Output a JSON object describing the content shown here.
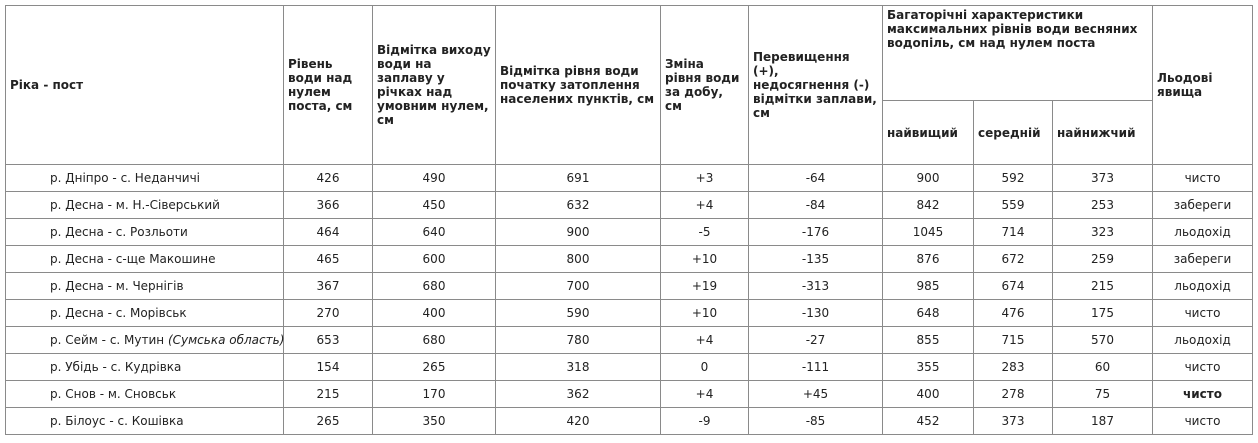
{
  "table": {
    "header": [
      "Ріка - пост",
      "Рівень води над нулем поста, см",
      "Відмітка виходу води на заплаву у річках над умовним нулем, см",
      "Відмітка рівня води початку затоплення населених пунктів, см",
      "Зміна рівня води за добу, см",
      "Перевищення (+), недосягнення (-) відмітки заплави, см",
      "Багаторічні характеристики максимальних рівнів води весняних водопіль, см над нулем поста",
      "Льодові явища"
    ],
    "subheader": [
      "найвищий",
      "середній",
      "найнижчий"
    ],
    "rows": [
      [
        "р. Дніпро - с. Неданчичі",
        "426",
        "490",
        "691",
        "+3",
        "-64",
        "900",
        "592",
        "373",
        "чисто"
      ],
      [
        "р. Десна - м. Н.-Сіверський",
        "366",
        "450",
        "632",
        "+4",
        "-84",
        "842",
        "559",
        "253",
        "забереги"
      ],
      [
        "р. Десна - с. Розльоти",
        "464",
        "640",
        "900",
        "-5",
        "-176",
        "1045",
        "714",
        "323",
        "льодохід"
      ],
      [
        "р. Десна - с-ще Макошине",
        "465",
        "600",
        "800",
        "+10",
        "-135",
        "876",
        "672",
        "259",
        "забереги"
      ],
      [
        "р. Десна - м. Чернігів",
        "367",
        "680",
        "700",
        "+19",
        "-313",
        "985",
        "674",
        "215",
        "льодохід"
      ],
      [
        "р. Десна - с. Морівськ",
        "270",
        "400",
        "590",
        "+10",
        "-130",
        "648",
        "476",
        "175",
        "чисто"
      ],
      [
        "р. Сейм - с. Мутин",
        "653",
        "680",
        "780",
        "+4",
        "-27",
        "855",
        "715",
        "570",
        "льодохід"
      ],
      [
        "р. Убідь - с. Кудрівка",
        "154",
        "265",
        "318",
        "0",
        "-111",
        "355",
        "283",
        "60",
        "чисто"
      ],
      [
        "р. Снов - м. Сновськ",
        "215",
        "170",
        "362",
        "+4",
        "+45",
        "400",
        "278",
        "75",
        "чисто"
      ],
      [
        "р. Білоус - с. Кошівка",
        "265",
        "350",
        "420",
        "-9",
        "-85",
        "452",
        "373",
        "187",
        "чисто"
      ]
    ],
    "row_notes": {
      "6": "(Сумська область)"
    }
  }
}
